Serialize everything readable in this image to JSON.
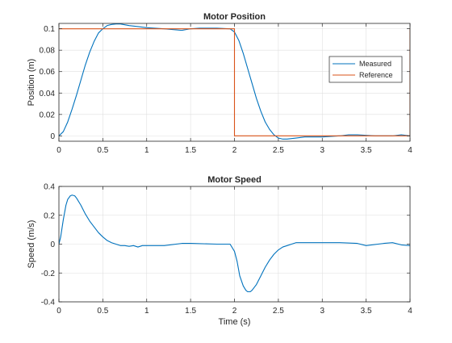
{
  "chart_data": [
    {
      "type": "line",
      "title": "Motor Position",
      "xlabel": "",
      "ylabel": "Position (m)",
      "xlim": [
        0,
        4
      ],
      "ylim": [
        -0.005,
        0.105
      ],
      "xticks": [
        0,
        0.5,
        1,
        1.5,
        2,
        2.5,
        3,
        3.5,
        4
      ],
      "xtick_labels": [
        "0",
        "0.5",
        "1",
        "1.5",
        "2",
        "2.5",
        "3",
        "3.5",
        "4"
      ],
      "yticks": [
        0,
        0.02,
        0.04,
        0.06,
        0.08,
        0.1
      ],
      "ytick_labels": [
        "0",
        "0.02",
        "0.04",
        "0.06",
        "0.08",
        "0.1"
      ],
      "grid": true,
      "legend": "right",
      "series": [
        {
          "name": "Measured",
          "color": "#0072BD",
          "x": [
            0,
            0.05,
            0.1,
            0.15,
            0.2,
            0.25,
            0.3,
            0.35,
            0.4,
            0.45,
            0.5,
            0.55,
            0.6,
            0.65,
            0.7,
            0.8,
            0.9,
            1.0,
            1.2,
            1.4,
            1.5,
            1.6,
            1.8,
            1.95,
            2.0,
            2.05,
            2.1,
            2.15,
            2.2,
            2.25,
            2.3,
            2.35,
            2.4,
            2.45,
            2.5,
            2.55,
            2.6,
            2.7,
            2.8,
            3.0,
            3.2,
            3.3,
            3.4,
            3.5,
            3.6,
            3.8,
            3.9,
            4.0
          ],
          "y": [
            0,
            0.004,
            0.013,
            0.025,
            0.038,
            0.052,
            0.066,
            0.078,
            0.088,
            0.096,
            0.1,
            0.103,
            0.104,
            0.1045,
            0.1045,
            0.103,
            0.102,
            0.101,
            0.1,
            0.0985,
            0.1,
            0.1005,
            0.1005,
            0.1,
            0.097,
            0.089,
            0.077,
            0.063,
            0.049,
            0.035,
            0.023,
            0.013,
            0.006,
            0.001,
            -0.002,
            -0.003,
            -0.003,
            -0.002,
            -0.001,
            -0.001,
            0,
            0.001,
            0.001,
            0.0005,
            0,
            0,
            0.001,
            0
          ]
        },
        {
          "name": "Reference",
          "color": "#D95319",
          "x": [
            0,
            2,
            2,
            4,
            4
          ],
          "y": [
            0.1,
            0.1,
            0,
            0,
            0.1
          ]
        }
      ]
    },
    {
      "type": "line",
      "title": "Motor Speed",
      "xlabel": "Time (s)",
      "ylabel": "Speed (m/s)",
      "xlim": [
        0,
        4
      ],
      "ylim": [
        -0.4,
        0.4
      ],
      "xticks": [
        0,
        0.5,
        1,
        1.5,
        2,
        2.5,
        3,
        3.5,
        4
      ],
      "xtick_labels": [
        "0",
        "0.5",
        "1",
        "1.5",
        "2",
        "2.5",
        "3",
        "3.5",
        "4"
      ],
      "yticks": [
        -0.4,
        -0.2,
        0,
        0.2,
        0.4
      ],
      "ytick_labels": [
        "-0.4",
        "-0.2",
        "0",
        "0.2",
        "0.4"
      ],
      "grid": true,
      "series": [
        {
          "color": "#0072BD",
          "x": [
            0,
            0.02,
            0.05,
            0.08,
            0.1,
            0.13,
            0.15,
            0.18,
            0.2,
            0.25,
            0.3,
            0.35,
            0.4,
            0.45,
            0.5,
            0.55,
            0.6,
            0.65,
            0.7,
            0.75,
            0.8,
            0.85,
            0.9,
            0.95,
            1.0,
            1.2,
            1.4,
            1.5,
            1.8,
            1.95,
            2.0,
            2.03,
            2.06,
            2.1,
            2.13,
            2.15,
            2.18,
            2.2,
            2.25,
            2.3,
            2.35,
            2.4,
            2.45,
            2.5,
            2.55,
            2.6,
            2.65,
            2.7,
            2.8,
            3.0,
            3.2,
            3.4,
            3.5,
            3.7,
            3.8,
            3.9,
            4.0
          ],
          "y": [
            0,
            0.05,
            0.17,
            0.27,
            0.31,
            0.335,
            0.34,
            0.335,
            0.32,
            0.27,
            0.21,
            0.16,
            0.12,
            0.08,
            0.05,
            0.025,
            0.01,
            0,
            -0.01,
            -0.01,
            -0.015,
            -0.01,
            -0.02,
            -0.01,
            -0.01,
            -0.01,
            0.005,
            0.005,
            0,
            0,
            -0.05,
            -0.12,
            -0.22,
            -0.29,
            -0.32,
            -0.33,
            -0.33,
            -0.32,
            -0.28,
            -0.22,
            -0.16,
            -0.11,
            -0.07,
            -0.04,
            -0.02,
            -0.01,
            0,
            0.01,
            0.01,
            0.01,
            0.01,
            0.005,
            -0.01,
            0.005,
            0.01,
            -0.005,
            -0.01
          ]
        }
      ]
    }
  ]
}
